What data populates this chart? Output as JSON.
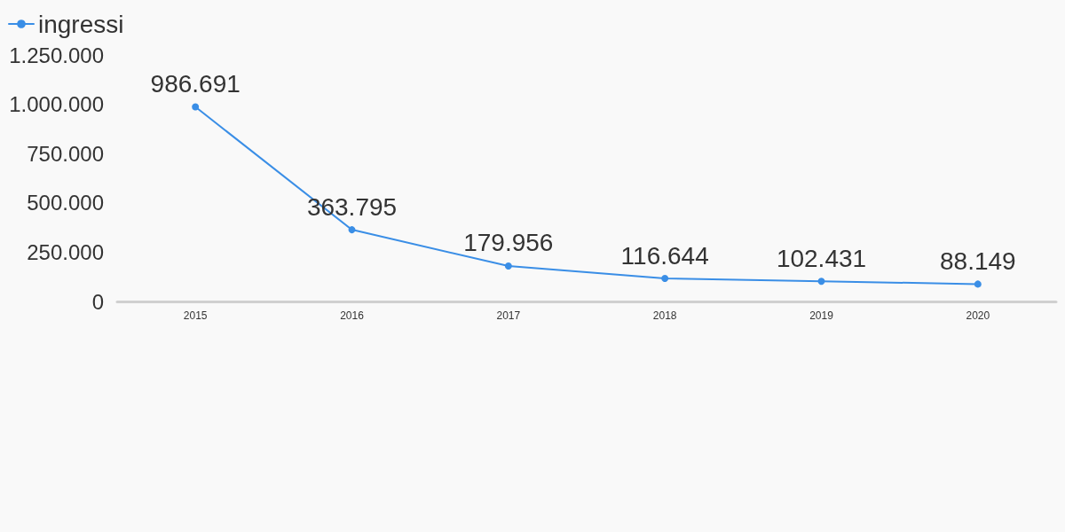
{
  "chart_data": {
    "type": "line",
    "categories": [
      "2015",
      "2016",
      "2017",
      "2018",
      "2019",
      "2020"
    ],
    "series": [
      {
        "name": "ingressi",
        "color": "#3a8ee6",
        "values": [
          986691,
          363795,
          179956,
          116644,
          102431,
          88149
        ],
        "value_labels": [
          "986.691",
          "363.795",
          "179.956",
          "116.644",
          "102.431",
          "88.149"
        ]
      }
    ],
    "ylim": [
      0,
      1250000
    ],
    "yticks": [
      {
        "value": 0,
        "label": "0"
      },
      {
        "value": 250000,
        "label": "250.000"
      },
      {
        "value": 500000,
        "label": "500.000"
      },
      {
        "value": 750000,
        "label": "750.000"
      },
      {
        "value": 1000000,
        "label": "1.000.000"
      },
      {
        "value": 1250000,
        "label": "1.250.000"
      }
    ],
    "grid": false,
    "legend": "top left",
    "marker": "circle",
    "line_style": "solid"
  }
}
